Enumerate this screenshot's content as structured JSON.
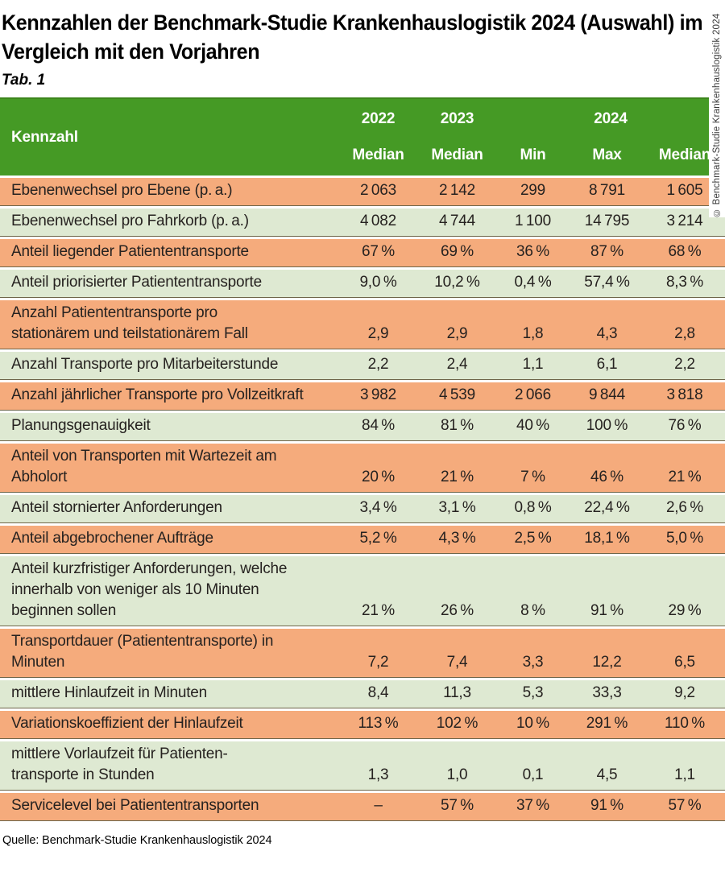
{
  "title": "Kennzahlen der Benchmark-Studie Krankenhauslogistik 2024 (Auswahl) im\nVergleich mit den Vorjahren",
  "tab_label": "Tab. 1",
  "source": "Quelle: Benchmark-Studie Krankenhauslogistik 2024",
  "copyright_vertical": "© Benchmark-Studie Krankenhauslogistik 2024",
  "colors": {
    "header_green": "#459a25",
    "header_green_dark_edge": "#3c851c",
    "row_orange": "#f5ab7c",
    "row_green": "#dee9d2",
    "separator_line": "#6e6549",
    "header_text": "#ffffff",
    "body_text": "#262220"
  },
  "table": {
    "kennzahl_header": "Kennzahl",
    "year_2022": "2022",
    "year_2023": "2023",
    "year_2024": "2024",
    "sub_headers": [
      "Median",
      "Median",
      "Min",
      "Max",
      "Median"
    ],
    "rows": [
      {
        "label": "Ebenenwechsel pro Ebene (p. a.)",
        "shade": "orange",
        "values": [
          "2 063",
          "2 142",
          "299",
          "8 791",
          "1 605"
        ]
      },
      {
        "label": "Ebenenwechsel pro Fahrkorb (p. a.)",
        "shade": "green",
        "values": [
          "4 082",
          "4 744",
          "1 100",
          "14 795",
          "3 214"
        ]
      },
      {
        "label": "Anteil liegender Patiententransporte",
        "shade": "orange",
        "values": [
          "67 %",
          "69 %",
          "36 %",
          "87 %",
          "68 %"
        ]
      },
      {
        "label": "Anteil priorisierter Patiententransporte",
        "shade": "green",
        "values": [
          "9,0 %",
          "10,2 %",
          "0,4 %",
          "57,4 %",
          "8,3 %"
        ]
      },
      {
        "label": "Anzahl Patiententransporte pro\nstationärem und teilstationärem Fall",
        "shade": "orange",
        "values": [
          "2,9",
          "2,9",
          "1,8",
          "4,3",
          "2,8"
        ]
      },
      {
        "label": "Anzahl Transporte pro Mitarbeiterstunde",
        "shade": "green",
        "values": [
          "2,2",
          "2,4",
          "1,1",
          "6,1",
          "2,2"
        ]
      },
      {
        "label": "Anzahl jährlicher Transporte pro Vollzeitkraft",
        "shade": "orange",
        "values": [
          "3 982",
          "4 539",
          "2 066",
          "9 844",
          "3 818"
        ]
      },
      {
        "label": "Planungsgenauigkeit",
        "shade": "green",
        "values": [
          "84 %",
          "81 %",
          "40 %",
          "100 %",
          "76 %"
        ]
      },
      {
        "label": "Anteil von Transporten mit Wartezeit am\nAbholort",
        "shade": "orange",
        "values": [
          "20 %",
          "21 %",
          "7 %",
          "46 %",
          "21 %"
        ]
      },
      {
        "label": "Anteil stornierter Anforderungen",
        "shade": "green",
        "values": [
          "3,4 %",
          "3,1 %",
          "0,8 %",
          "22,4 %",
          "2,6 %"
        ]
      },
      {
        "label": "Anteil abgebrochener Aufträge",
        "shade": "orange",
        "values": [
          "5,2 %",
          "4,3 %",
          "2,5 %",
          "18,1 %",
          "5,0 %"
        ]
      },
      {
        "label": "Anteil kurzfristiger Anforderungen, welche\ninnerhalb von weniger als 10 Minuten\nbeginnen sollen",
        "shade": "green",
        "values": [
          "21 %",
          "26 %",
          "8 %",
          "91 %",
          "29 %"
        ]
      },
      {
        "label": "Transportdauer (Patiententransporte) in\nMinuten",
        "shade": "orange",
        "values": [
          "7,2",
          "7,4",
          "3,3",
          "12,2",
          "6,5"
        ]
      },
      {
        "label": "mittlere Hinlaufzeit in Minuten",
        "shade": "green",
        "values": [
          "8,4",
          "11,3",
          "5,3",
          "33,3",
          "9,2"
        ]
      },
      {
        "label": "Variationskoeffizient der Hinlaufzeit",
        "shade": "orange",
        "values": [
          "113 %",
          "102 %",
          "10 %",
          "291 %",
          "110 %"
        ]
      },
      {
        "label": "mittlere Vorlaufzeit für Patienten-\ntransporte in Stunden",
        "shade": "green",
        "values": [
          "1,3",
          "1,0",
          "0,1",
          "4,5",
          "1,1"
        ]
      },
      {
        "label": "Servicelevel bei Patiententransporten",
        "shade": "orange",
        "values": [
          "–",
          "57 %",
          "37 %",
          "91 %",
          "57 %"
        ]
      }
    ]
  },
  "chart_data": {
    "type": "table",
    "title": "Kennzahlen der Benchmark-Studie Krankenhauslogistik 2024 (Auswahl) im Vergleich mit den Vorjahren",
    "columns": [
      "Kennzahl",
      "2022 Median",
      "2023 Median",
      "2024 Min",
      "2024 Max",
      "2024 Median"
    ],
    "rows": [
      {
        "label": "Ebenenwechsel pro Ebene (p. a.)",
        "unit": "count",
        "values": [
          2063,
          2142,
          299,
          8791,
          1605
        ]
      },
      {
        "label": "Ebenenwechsel pro Fahrkorb (p. a.)",
        "unit": "count",
        "values": [
          4082,
          4744,
          1100,
          14795,
          3214
        ]
      },
      {
        "label": "Anteil liegender Patiententransporte",
        "unit": "%",
        "values": [
          67,
          69,
          36,
          87,
          68
        ]
      },
      {
        "label": "Anteil priorisierter Patiententransporte",
        "unit": "%",
        "values": [
          9.0,
          10.2,
          0.4,
          57.4,
          8.3
        ]
      },
      {
        "label": "Anzahl Patiententransporte pro stationärem und teilstationärem Fall",
        "unit": "ratio",
        "values": [
          2.9,
          2.9,
          1.8,
          4.3,
          2.8
        ]
      },
      {
        "label": "Anzahl Transporte pro Mitarbeiterstunde",
        "unit": "ratio",
        "values": [
          2.2,
          2.4,
          1.1,
          6.1,
          2.2
        ]
      },
      {
        "label": "Anzahl jährlicher Transporte pro Vollzeitkraft",
        "unit": "count",
        "values": [
          3982,
          4539,
          2066,
          9844,
          3818
        ]
      },
      {
        "label": "Planungsgenauigkeit",
        "unit": "%",
        "values": [
          84,
          81,
          40,
          100,
          76
        ]
      },
      {
        "label": "Anteil von Transporten mit Wartezeit am Abholort",
        "unit": "%",
        "values": [
          20,
          21,
          7,
          46,
          21
        ]
      },
      {
        "label": "Anteil stornierter Anforderungen",
        "unit": "%",
        "values": [
          3.4,
          3.1,
          0.8,
          22.4,
          2.6
        ]
      },
      {
        "label": "Anteil abgebrochener Aufträge",
        "unit": "%",
        "values": [
          5.2,
          4.3,
          2.5,
          18.1,
          5.0
        ]
      },
      {
        "label": "Anteil kurzfristiger Anforderungen, welche innerhalb von weniger als 10 Minuten beginnen sollen",
        "unit": "%",
        "values": [
          21,
          26,
          8,
          91,
          29
        ]
      },
      {
        "label": "Transportdauer (Patiententransporte) in Minuten",
        "unit": "min",
        "values": [
          7.2,
          7.4,
          3.3,
          12.2,
          6.5
        ]
      },
      {
        "label": "mittlere Hinlaufzeit in Minuten",
        "unit": "min",
        "values": [
          8.4,
          11.3,
          5.3,
          33.3,
          9.2
        ]
      },
      {
        "label": "Variationskoeffizient der Hinlaufzeit",
        "unit": "%",
        "values": [
          113,
          102,
          10,
          291,
          110
        ]
      },
      {
        "label": "mittlere Vorlaufzeit für Patiententransporte in Stunden",
        "unit": "h",
        "values": [
          1.3,
          1.0,
          0.1,
          4.5,
          1.1
        ]
      },
      {
        "label": "Servicelevel bei Patiententransporten",
        "unit": "%",
        "values": [
          null,
          57,
          37,
          91,
          57
        ]
      }
    ]
  }
}
